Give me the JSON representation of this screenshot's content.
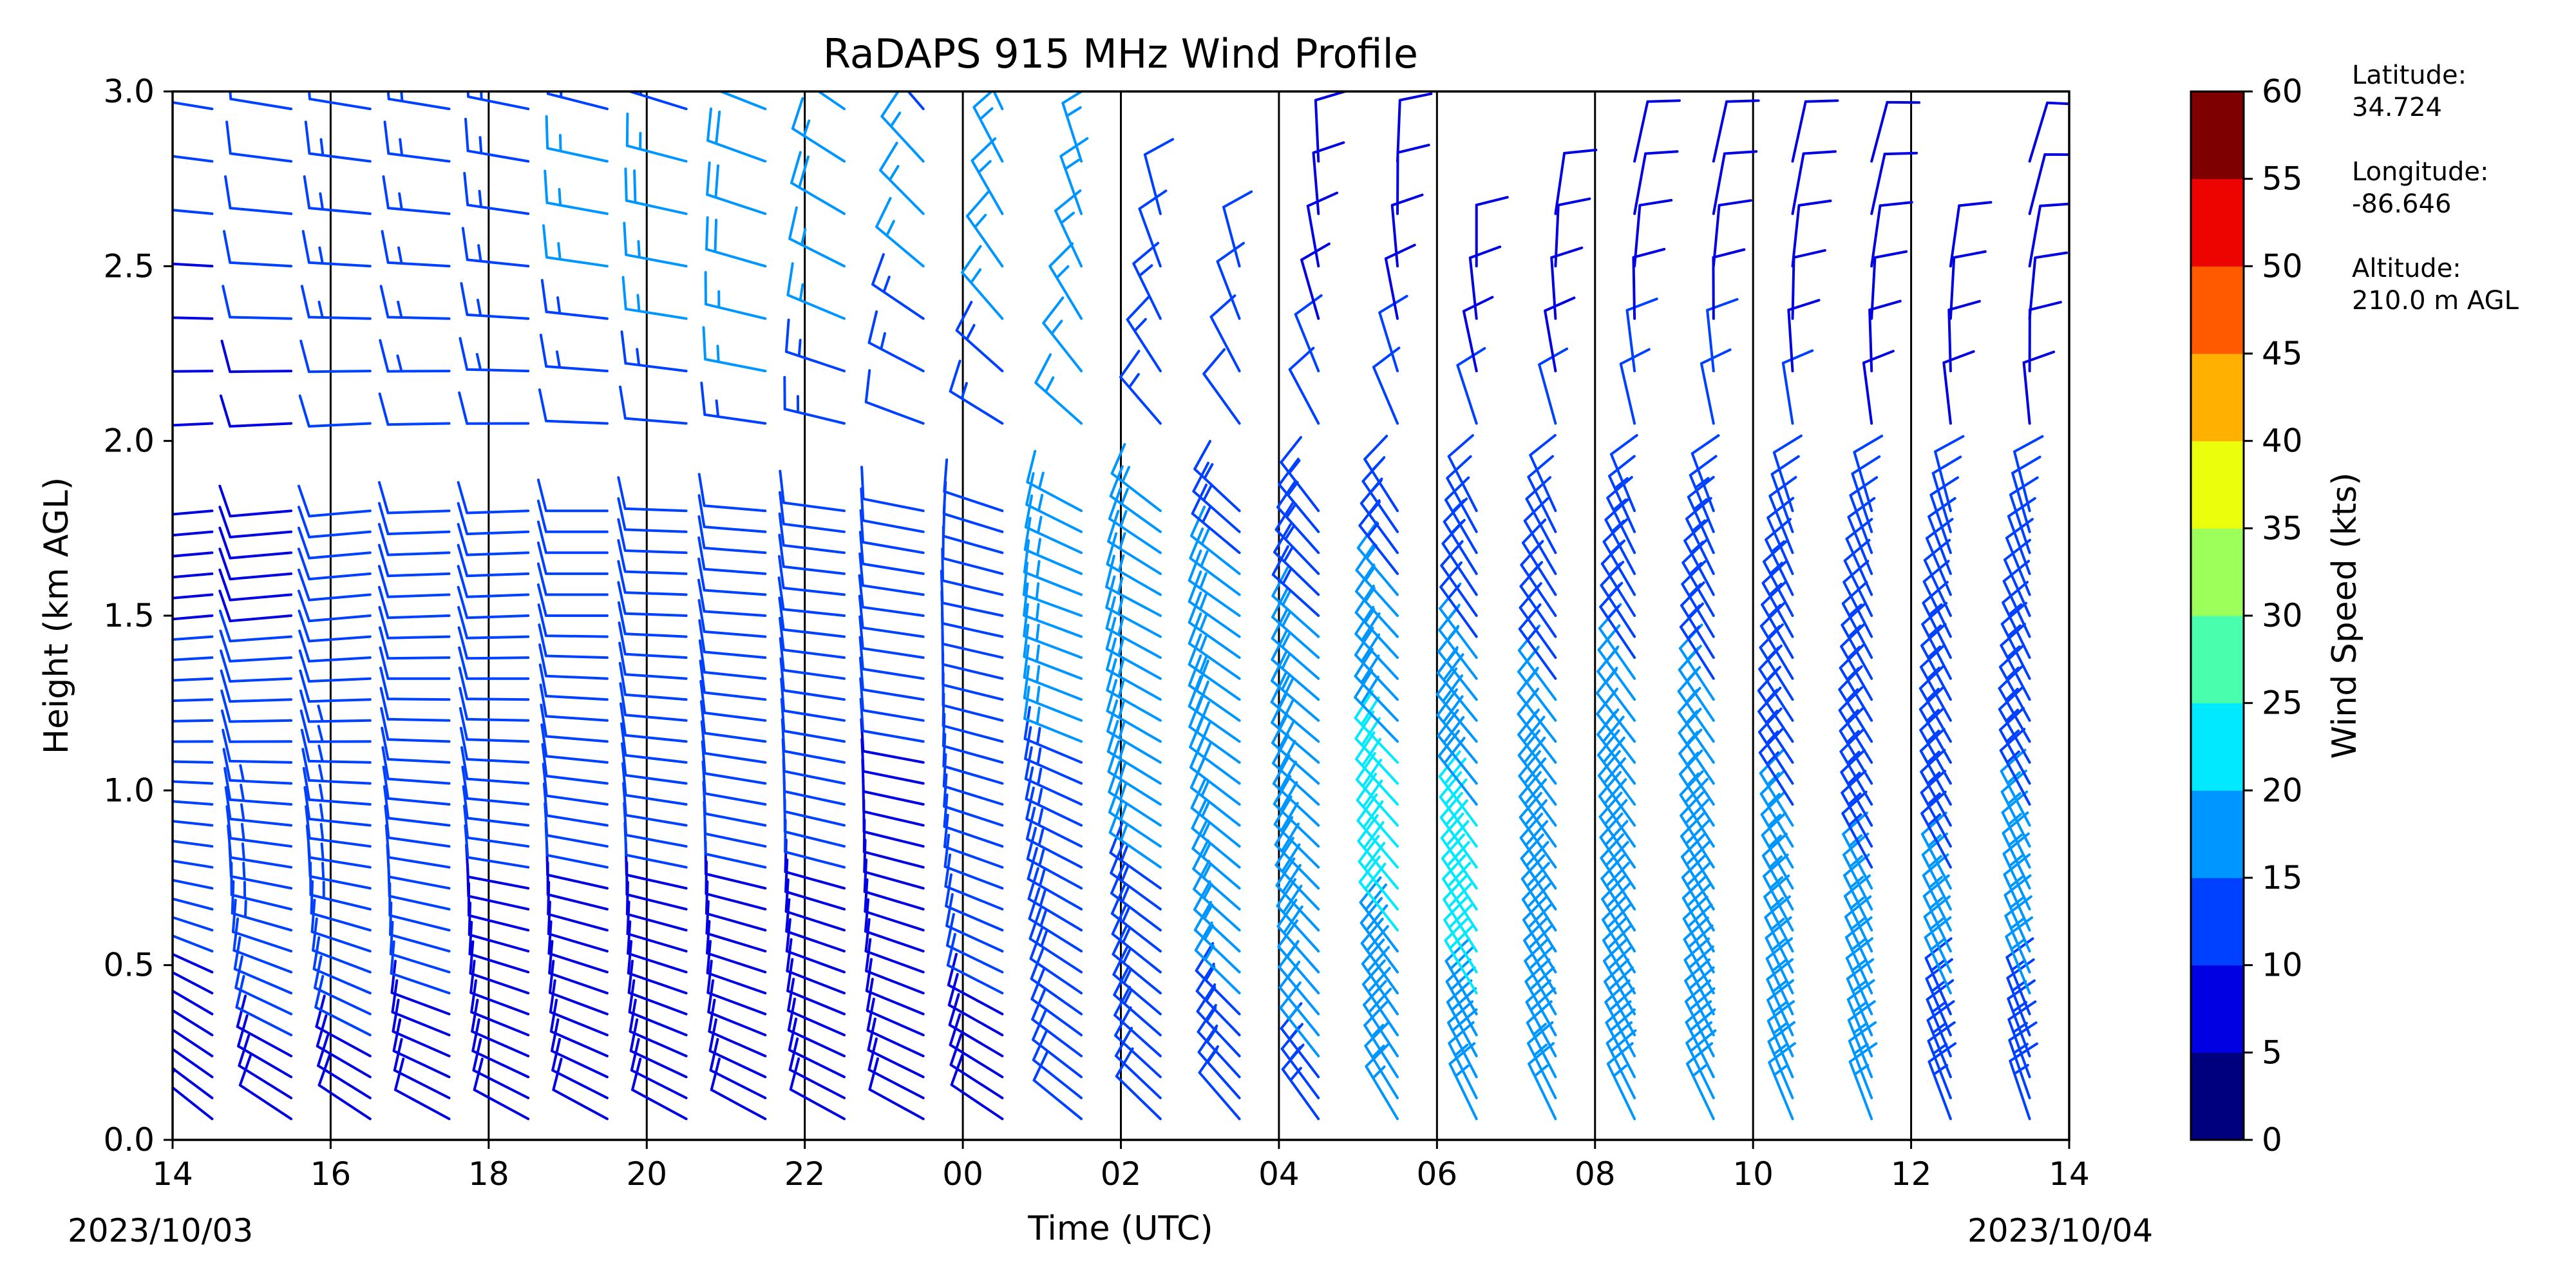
{
  "chart_data": {
    "type": "wind-barb",
    "title": "RaDAPS 915 MHz Wind Profile",
    "xlabel": "Time (UTC)",
    "ylabel": "Height (km AGL)",
    "x_ticks": [
      "14",
      "16",
      "18",
      "20",
      "22",
      "00",
      "02",
      "04",
      "06",
      "08",
      "10",
      "12",
      "14"
    ],
    "x_range": [
      "2023-10-03T14:00Z",
      "2023-10-04T14:00Z"
    ],
    "start_date_label": "2023/10/03",
    "end_date_label": "2023/10/04",
    "y_ticks": [
      "0.0",
      "0.5",
      "1.0",
      "1.5",
      "2.0",
      "2.5",
      "3.0"
    ],
    "ylim": [
      0.0,
      3.0
    ],
    "colorbar": {
      "label": "Wind Speed (kts)",
      "range": [
        0,
        60
      ],
      "ticks": [
        "0",
        "5",
        "10",
        "15",
        "20",
        "25",
        "30",
        "35",
        "40",
        "45",
        "50",
        "55",
        "60"
      ],
      "colors": [
        "#00007f",
        "#0000e3",
        "#0040ff",
        "#0096ff",
        "#00e9ff",
        "#49ffad",
        "#9dff5a",
        "#ebff0c",
        "#ffb000",
        "#ff5a00",
        "#ed0400",
        "#7f0000"
      ]
    },
    "grid": "vertical lines every 2 hours",
    "station": {
      "latitude_label": "Latitude:",
      "latitude": "34.724",
      "longitude_label": "Longitude:",
      "longitude": "-86.646",
      "altitude_label": "Altitude:",
      "altitude": "210.0 m AGL"
    },
    "profiles": [
      {
        "time": "14:30",
        "top_km": 3.0,
        "speed_kts": [
          6,
          9,
          12,
          11,
          10,
          9,
          9,
          10,
          11
        ],
        "direction_deg": [
          310,
          300,
          280,
          270,
          265,
          265,
          270,
          275,
          280
        ]
      },
      {
        "time": "15:30",
        "top_km": 3.0,
        "speed_kts": [
          7,
          11,
          14,
          12,
          10,
          9,
          10,
          11,
          12
        ],
        "direction_deg": [
          305,
          295,
          280,
          270,
          265,
          265,
          270,
          275,
          280
        ]
      },
      {
        "time": "16:30",
        "top_km": 3.0,
        "speed_kts": [
          7,
          11,
          13,
          13,
          11,
          10,
          12,
          14,
          12
        ],
        "direction_deg": [
          305,
          295,
          280,
          270,
          265,
          265,
          270,
          275,
          280
        ]
      },
      {
        "time": "17:30",
        "top_km": 3.0,
        "speed_kts": [
          8,
          10,
          11,
          12,
          11,
          10,
          13,
          15,
          13
        ],
        "direction_deg": [
          300,
          290,
          280,
          272,
          268,
          268,
          270,
          275,
          280
        ]
      },
      {
        "time": "18:30",
        "top_km": 3.0,
        "speed_kts": [
          8,
          9,
          10,
          11,
          11,
          10,
          13,
          15,
          13
        ],
        "direction_deg": [
          300,
          290,
          280,
          272,
          268,
          268,
          272,
          278,
          282
        ]
      },
      {
        "time": "19:30",
        "top_km": 3.0,
        "speed_kts": [
          8,
          9,
          10,
          11,
          11,
          10,
          14,
          16,
          14
        ],
        "direction_deg": [
          300,
          290,
          282,
          275,
          270,
          270,
          275,
          280,
          285
        ]
      },
      {
        "time": "20:30",
        "top_km": 3.0,
        "speed_kts": [
          8,
          9,
          10,
          11,
          11,
          10,
          15,
          18,
          14
        ],
        "direction_deg": [
          300,
          290,
          282,
          276,
          272,
          272,
          278,
          282,
          288
        ]
      },
      {
        "time": "21:30",
        "top_km": 3.0,
        "speed_kts": [
          9,
          9,
          10,
          11,
          11,
          11,
          16,
          20,
          15
        ],
        "direction_deg": [
          300,
          290,
          283,
          278,
          274,
          275,
          282,
          288,
          292
        ]
      },
      {
        "time": "22:30",
        "top_km": 3.0,
        "speed_kts": [
          9,
          9,
          10,
          11,
          11,
          11,
          15,
          18,
          15
        ],
        "direction_deg": [
          300,
          292,
          285,
          280,
          276,
          278,
          290,
          300,
          305
        ]
      },
      {
        "time": "23:30",
        "top_km": 3.0,
        "speed_kts": [
          8,
          8,
          9,
          10,
          11,
          11,
          14,
          16,
          14
        ],
        "direction_deg": [
          300,
          292,
          285,
          280,
          278,
          282,
          300,
          315,
          320
        ]
      },
      {
        "time": "00:30",
        "top_km": 3.0,
        "speed_kts": [
          9,
          10,
          11,
          11,
          12,
          12,
          15,
          16,
          15
        ],
        "direction_deg": [
          305,
          298,
          290,
          285,
          282,
          290,
          315,
          330,
          335
        ]
      },
      {
        "time": "01:30",
        "top_km": 2.8,
        "speed_kts": [
          10,
          12,
          14,
          15,
          16,
          15,
          16,
          17,
          16
        ],
        "direction_deg": [
          310,
          305,
          298,
          292,
          290,
          300,
          325,
          340,
          345
        ]
      },
      {
        "time": "02:30",
        "top_km": 2.7,
        "speed_kts": [
          11,
          13,
          15,
          17,
          17,
          15,
          13,
          12,
          10
        ],
        "direction_deg": [
          315,
          310,
          305,
          300,
          298,
          310,
          330,
          345,
          350
        ]
      },
      {
        "time": "03:30",
        "top_km": 2.6,
        "speed_kts": [
          12,
          15,
          17,
          18,
          16,
          13,
          11,
          10,
          9
        ],
        "direction_deg": [
          320,
          315,
          310,
          305,
          305,
          315,
          335,
          350,
          355
        ]
      },
      {
        "time": "04:30",
        "top_km": 2.9,
        "speed_kts": [
          13,
          17,
          19,
          18,
          15,
          12,
          10,
          9,
          8
        ],
        "direction_deg": [
          325,
          320,
          315,
          310,
          312,
          325,
          340,
          355,
          0
        ]
      },
      {
        "time": "05:30",
        "top_km": 2.8,
        "speed_kts": [
          15,
          19,
          21,
          20,
          16,
          12,
          10,
          9,
          9
        ],
        "direction_deg": [
          330,
          325,
          320,
          316,
          318,
          330,
          345,
          0,
          5
        ]
      },
      {
        "time": "06:30",
        "top_km": 2.6,
        "speed_kts": [
          16,
          20,
          21,
          19,
          14,
          11,
          9,
          9,
          8
        ],
        "direction_deg": [
          335,
          330,
          325,
          320,
          325,
          335,
          350,
          5,
          10
        ]
      },
      {
        "time": "07:30",
        "top_km": 2.7,
        "speed_kts": [
          16,
          19,
          20,
          17,
          13,
          11,
          9,
          8,
          8
        ],
        "direction_deg": [
          335,
          330,
          325,
          322,
          326,
          338,
          352,
          8,
          12
        ]
      },
      {
        "time": "08:30",
        "top_km": 2.8,
        "speed_kts": [
          17,
          20,
          19,
          17,
          14,
          12,
          10,
          9,
          9
        ],
        "direction_deg": [
          335,
          330,
          326,
          322,
          328,
          340,
          355,
          10,
          15
        ]
      },
      {
        "time": "09:30",
        "top_km": 2.8,
        "speed_kts": [
          17,
          19,
          18,
          16,
          14,
          12,
          10,
          9,
          8
        ],
        "direction_deg": [
          335,
          332,
          328,
          325,
          330,
          342,
          356,
          10,
          15
        ]
      },
      {
        "time": "10:30",
        "top_km": 2.8,
        "speed_kts": [
          16,
          17,
          16,
          14,
          13,
          11,
          9,
          8,
          7
        ],
        "direction_deg": [
          338,
          335,
          330,
          326,
          332,
          345,
          358,
          10,
          15
        ]
      },
      {
        "time": "11:30",
        "top_km": 2.8,
        "speed_kts": [
          15,
          16,
          15,
          14,
          12,
          10,
          9,
          8,
          7
        ],
        "direction_deg": [
          340,
          336,
          332,
          328,
          334,
          346,
          0,
          12,
          18
        ]
      },
      {
        "time": "12:30",
        "top_km": 2.6,
        "speed_kts": [
          14,
          15,
          15,
          14,
          12,
          10,
          9,
          8,
          7
        ],
        "direction_deg": [
          340,
          336,
          332,
          330,
          335,
          348,
          0,
          12,
          18
        ]
      },
      {
        "time": "13:30",
        "top_km": 2.8,
        "speed_kts": [
          13,
          15,
          16,
          14,
          12,
          10,
          9,
          8,
          7
        ],
        "direction_deg": [
          342,
          338,
          334,
          330,
          336,
          348,
          2,
          14,
          20
        ]
      }
    ]
  }
}
